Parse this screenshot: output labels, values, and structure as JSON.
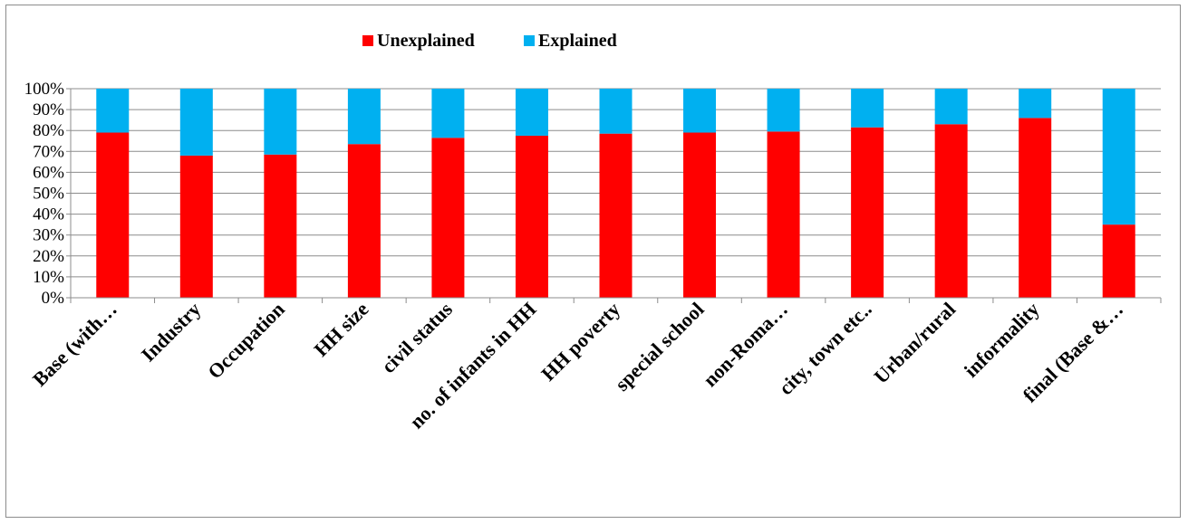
{
  "chart_data": {
    "type": "bar",
    "stacked": true,
    "percent_stacked": true,
    "categories": [
      "Base (with…",
      "Industry",
      "Occupation",
      "HH size",
      "civil status",
      "no. of infants in HH",
      "HH poverty",
      "special school",
      "non-Roma…",
      "city, town etc..",
      "Urban/rural",
      "informality",
      "final (Base &…"
    ],
    "series": [
      {
        "name": "Unexplained",
        "color": "#ff0000",
        "values": [
          79,
          68,
          68.5,
          73.5,
          76.5,
          77.5,
          78.5,
          79,
          79.5,
          81.5,
          83,
          86,
          35
        ]
      },
      {
        "name": "Explained",
        "color": "#00b0f0",
        "values": [
          21,
          32,
          31.5,
          26.5,
          23.5,
          22.5,
          21.5,
          21,
          20.5,
          18.5,
          17,
          14,
          65
        ]
      }
    ],
    "yticks": [
      "0%",
      "10%",
      "20%",
      "30%",
      "40%",
      "50%",
      "60%",
      "70%",
      "80%",
      "90%",
      "100%"
    ],
    "ylim": [
      0,
      100
    ],
    "grid": true,
    "legend_position": "top-center",
    "title": "",
    "xlabel": "",
    "ylabel": ""
  }
}
